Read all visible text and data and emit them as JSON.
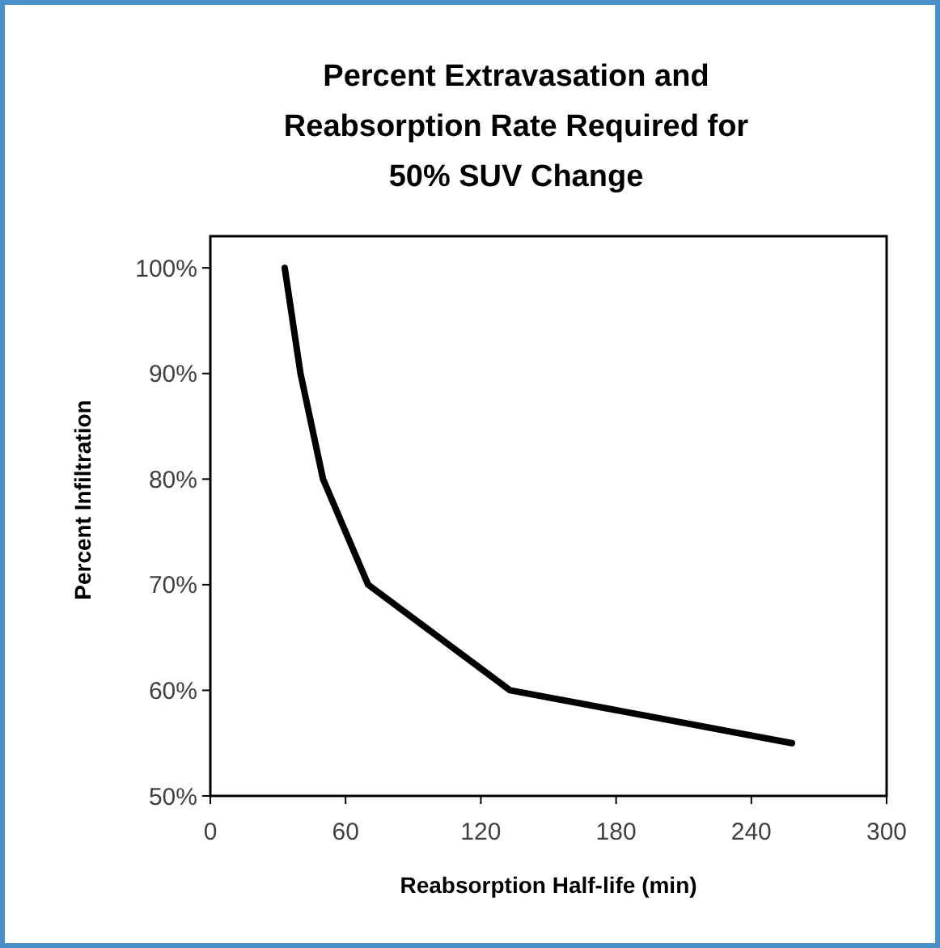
{
  "chart_data": {
    "type": "line",
    "title": "Percent Extravasation and Reabsorption Rate Required for 50% SUV Change",
    "xlabel": "Reabsorption Half-life (min)",
    "ylabel": "Percent Infiltration",
    "x": [
      33,
      40,
      50,
      70,
      133,
      258
    ],
    "series": [
      {
        "color": "#000000",
        "values": [
          100,
          90,
          80,
          70,
          60,
          55
        ]
      }
    ],
    "xlim": [
      0,
      300
    ],
    "xticks": [
      0,
      60,
      120,
      180,
      240,
      300
    ],
    "ylim": [
      50,
      103
    ],
    "yticks": [
      {
        "value": 50,
        "label": "50%"
      },
      {
        "value": 60,
        "label": "60%"
      },
      {
        "value": 70,
        "label": "70%"
      },
      {
        "value": 80,
        "label": "80%"
      },
      {
        "value": 90,
        "label": "90%"
      },
      {
        "value": 100,
        "label": "100%"
      }
    ],
    "grid": false,
    "marker": "none",
    "line_style": "solid"
  }
}
